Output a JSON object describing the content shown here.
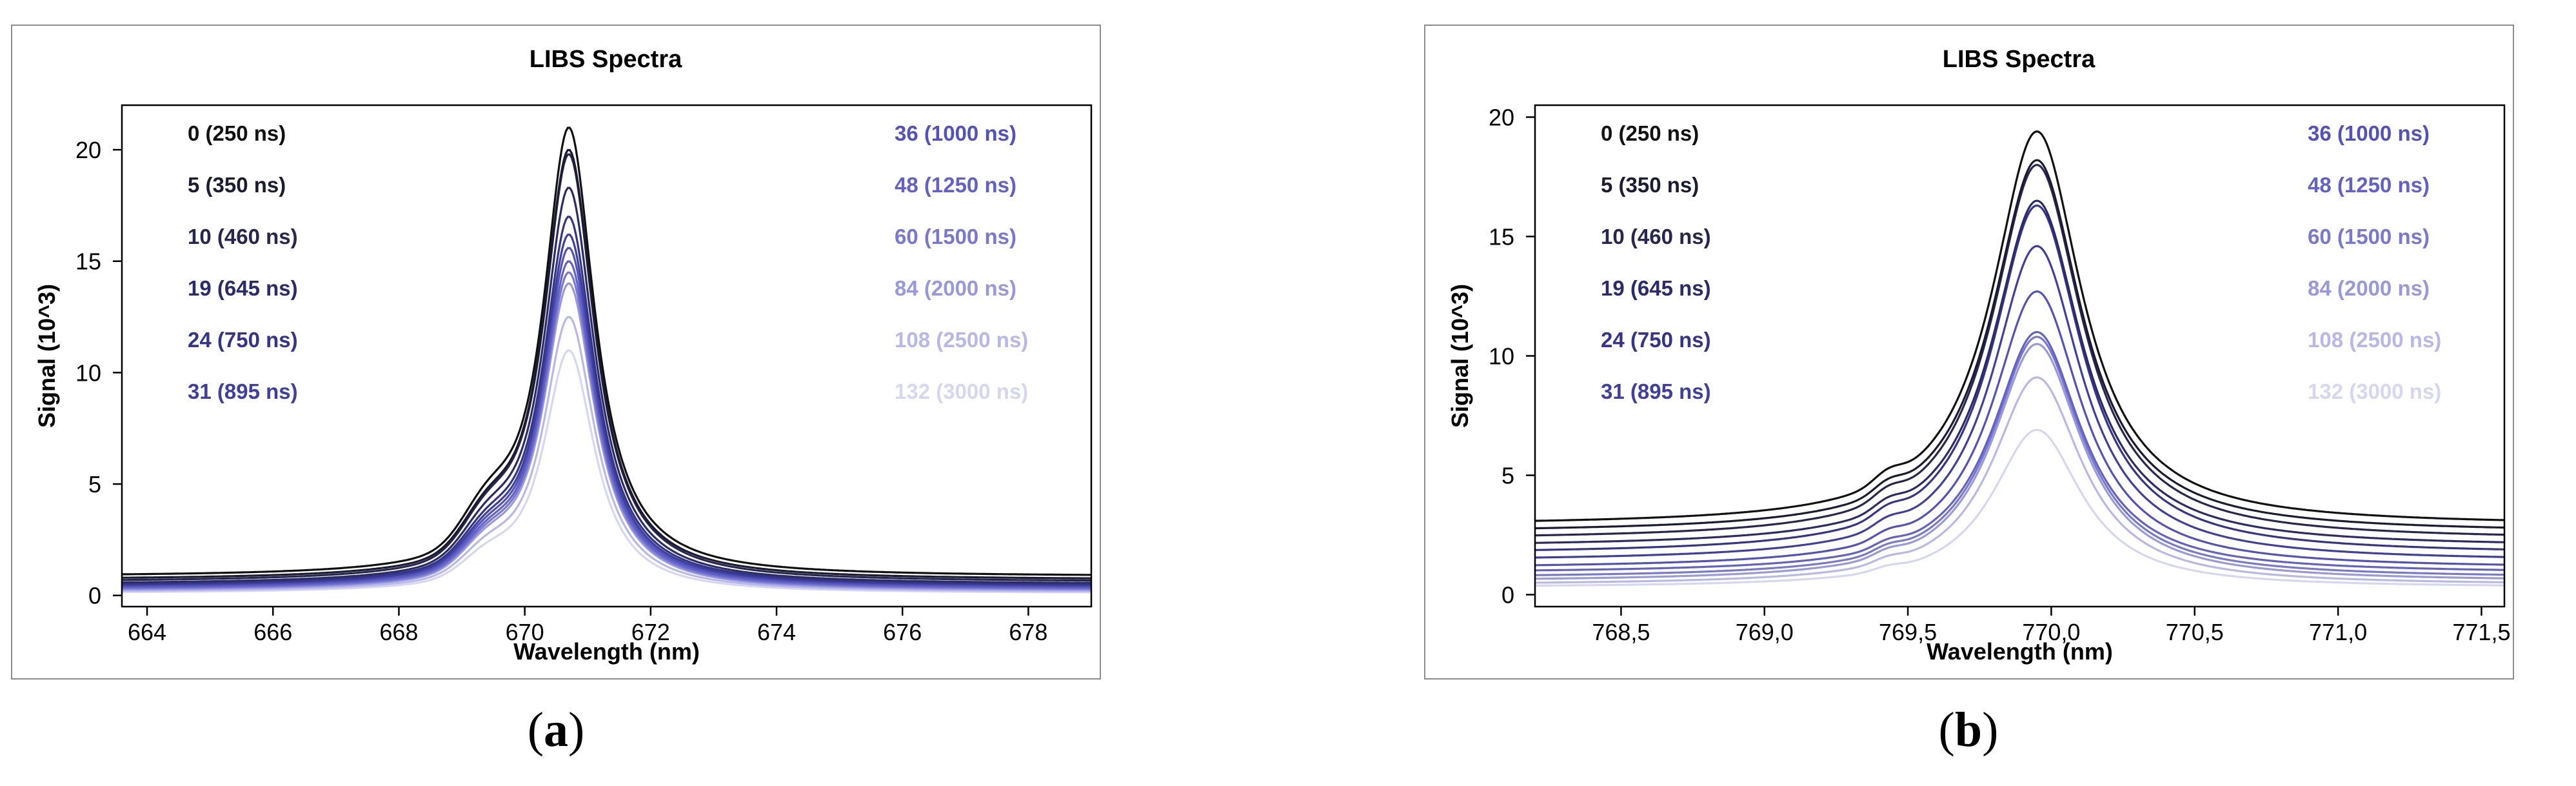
{
  "colors": {
    "series": [
      "#111111",
      "#1b1b33",
      "#262650",
      "#2b2b6a",
      "#34348a",
      "#3f3fa0",
      "#5252ba",
      "#6262c6",
      "#7878cf",
      "#9898db",
      "#b8b8e8",
      "#d6d6f2"
    ],
    "frame": "#8c8c8c",
    "axis": "#000000"
  },
  "captions": [
    {
      "open": "(",
      "letter": "a",
      "close": ")"
    },
    {
      "open": "(",
      "letter": "b",
      "close": ")"
    }
  ],
  "chart_data": [
    {
      "type": "line",
      "title": "LIBS Spectra",
      "xlabel": "Wavelength (nm)",
      "ylabel": "Signal (10^3)",
      "xlim": [
        663.6,
        679.0
      ],
      "ylim": [
        -0.5,
        22.0
      ],
      "xticks": [
        664,
        666,
        668,
        670,
        672,
        674,
        676,
        678
      ],
      "xtick_labels": [
        "664",
        "666",
        "668",
        "670",
        "672",
        "674",
        "676",
        "678"
      ],
      "yticks": [
        0,
        5,
        10,
        15,
        20
      ],
      "ytick_labels": [
        "0",
        "5",
        "10",
        "15",
        "20"
      ],
      "grid": false,
      "legend_position": "top (two columns)",
      "peak_center": 670.7,
      "series": [
        {
          "name": "0 (250 ns)",
          "peak": 21.0,
          "base": 0.85
        },
        {
          "name": "5 (350 ns)",
          "peak": 20.0,
          "base": 0.7
        },
        {
          "name": "10 (460 ns)",
          "peak": 19.8,
          "base": 0.6
        },
        {
          "name": "19 (645 ns)",
          "peak": 18.3,
          "base": 0.5
        },
        {
          "name": "24 (750 ns)",
          "peak": 17.0,
          "base": 0.45
        },
        {
          "name": "31 (895 ns)",
          "peak": 16.2,
          "base": 0.4
        },
        {
          "name": "36 (1000 ns)",
          "peak": 15.6,
          "base": 0.35
        },
        {
          "name": "48 (1250 ns)",
          "peak": 15.0,
          "base": 0.3
        },
        {
          "name": "60 (1500 ns)",
          "peak": 14.5,
          "base": 0.25
        },
        {
          "name": "84 (2000 ns)",
          "peak": 14.0,
          "base": 0.2
        },
        {
          "name": "108 (2500 ns)",
          "peak": 12.5,
          "base": 0.15
        },
        {
          "name": "132 (3000 ns)",
          "peak": 11.0,
          "base": 0.1
        }
      ]
    },
    {
      "type": "line",
      "title": "LIBS Spectra",
      "xlabel": "Wavelength (nm)",
      "ylabel": "Signal (10^3)",
      "xlim": [
        768.2,
        771.58
      ],
      "ylim": [
        -0.5,
        20.5
      ],
      "xticks": [
        768.5,
        769.0,
        769.5,
        770.0,
        770.5,
        771.0,
        771.5
      ],
      "xtick_labels": [
        "768,5",
        "769,0",
        "769,5",
        "770,0",
        "770,5",
        "771,0",
        "771,5"
      ],
      "yticks": [
        0,
        5,
        10,
        15,
        20
      ],
      "ytick_labels": [
        "0",
        "5",
        "10",
        "15",
        "20"
      ],
      "grid": false,
      "legend_position": "top (two columns)",
      "peak_center": 769.95,
      "series": [
        {
          "name": "0 (250 ns)",
          "peak": 19.4,
          "base": 2.9
        },
        {
          "name": "5 (350 ns)",
          "peak": 18.2,
          "base": 2.6
        },
        {
          "name": "10 (460 ns)",
          "peak": 18.0,
          "base": 2.3
        },
        {
          "name": "19 (645 ns)",
          "peak": 16.5,
          "base": 2.0
        },
        {
          "name": "24 (750 ns)",
          "peak": 16.3,
          "base": 1.7
        },
        {
          "name": "31 (895 ns)",
          "peak": 14.6,
          "base": 1.4
        },
        {
          "name": "36 (1000 ns)",
          "peak": 12.7,
          "base": 1.1
        },
        {
          "name": "48 (1250 ns)",
          "peak": 11.0,
          "base": 0.9
        },
        {
          "name": "60 (1500 ns)",
          "peak": 10.8,
          "base": 0.7
        },
        {
          "name": "84 (2000 ns)",
          "peak": 10.5,
          "base": 0.55
        },
        {
          "name": "108 (2500 ns)",
          "peak": 9.1,
          "base": 0.4
        },
        {
          "name": "132 (3000 ns)",
          "peak": 6.9,
          "base": 0.3
        }
      ]
    }
  ]
}
